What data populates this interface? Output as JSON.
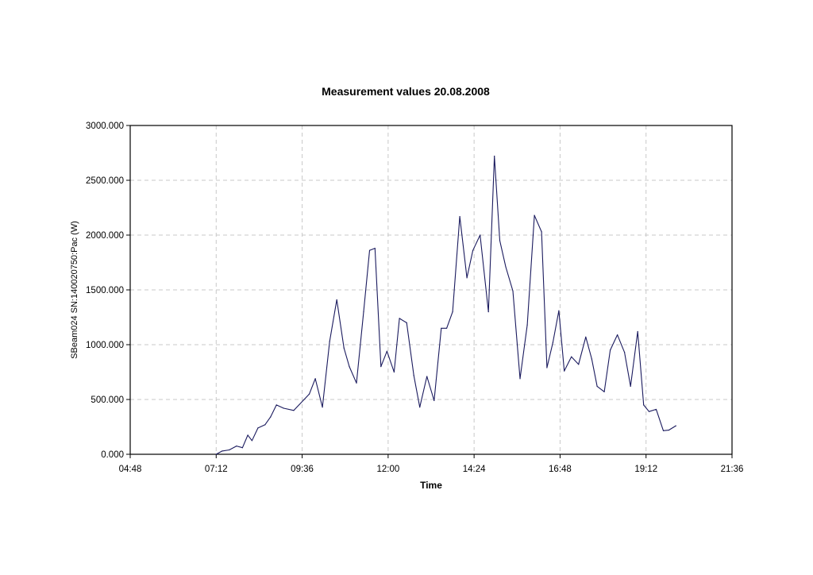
{
  "chart_data": {
    "type": "line",
    "title": "Measurement values 20.08.2008",
    "xlabel": "Time",
    "ylabel": "SBeam024 SN:140020750:Pac (W)",
    "xlim": [
      "04:48",
      "21:36"
    ],
    "ylim": [
      0,
      3000
    ],
    "x_ticks": [
      "04:48",
      "07:12",
      "09:36",
      "12:00",
      "14:24",
      "16:48",
      "19:12",
      "21:36"
    ],
    "y_ticks": [
      "0.000",
      "500.000",
      "1000.000",
      "1500.000",
      "2000.000",
      "2500.000",
      "3000.000"
    ],
    "grid": true,
    "legend": "none",
    "line_color": "#1a1a5e",
    "series": [
      {
        "x": [
          "07:12",
          "07:22",
          "07:34",
          "07:46",
          "07:56",
          "08:05",
          "08:12",
          "08:22",
          "08:34",
          "08:43",
          "08:53",
          "09:05",
          "09:22",
          "09:48",
          "09:58",
          "10:10",
          "10:22",
          "10:34",
          "10:46",
          "10:55",
          "11:07",
          "11:19",
          "11:29",
          "11:38",
          "11:48",
          "11:58",
          "12:10",
          "12:19",
          "12:31",
          "12:43",
          "12:53",
          "13:05",
          "13:17",
          "13:29",
          "13:38",
          "13:48",
          "14:00",
          "14:12",
          "14:22",
          "14:34",
          "14:48",
          "14:58",
          "15:07",
          "15:17",
          "15:29",
          "15:41",
          "15:53",
          "16:05",
          "16:17",
          "16:26",
          "16:36",
          "16:46",
          "16:55",
          "17:07",
          "17:19",
          "17:31",
          "17:41",
          "17:50",
          "18:02",
          "18:12",
          "18:24",
          "18:36",
          "18:46",
          "18:58",
          "19:08",
          "19:17",
          "19:29",
          "19:41",
          "19:50",
          "20:02"
        ],
        "values": [
          0,
          30,
          40,
          75,
          60,
          175,
          125,
          240,
          270,
          340,
          450,
          420,
          400,
          550,
          690,
          430,
          1030,
          1410,
          970,
          800,
          650,
          1300,
          1860,
          1880,
          800,
          940,
          750,
          1240,
          1200,
          720,
          430,
          710,
          490,
          1150,
          1150,
          1300,
          2170,
          1610,
          1860,
          2000,
          1300,
          2720,
          1950,
          1710,
          1490,
          690,
          1180,
          2180,
          2030,
          790,
          1020,
          1310,
          760,
          890,
          820,
          1070,
          870,
          620,
          570,
          950,
          1090,
          930,
          620,
          1120,
          450,
          390,
          410,
          215,
          220,
          260
        ]
      }
    ]
  }
}
